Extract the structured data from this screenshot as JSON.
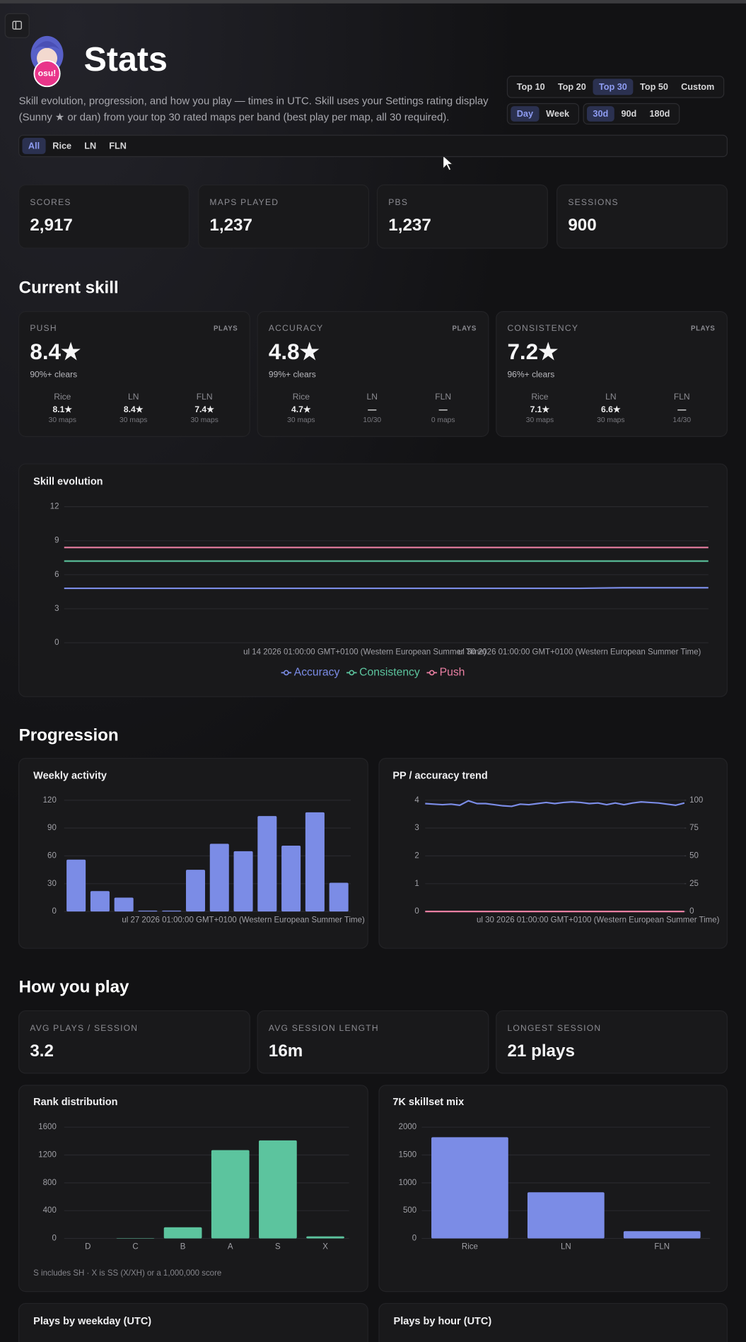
{
  "header": {
    "title": "Stats",
    "badge": "osu!",
    "description": "Skill evolution, progression, and how you play — times in UTC. Skill uses your Settings rating display (Sunny ★ or dan) from your top 30 rated maps per band (best play per map, all 30 required)."
  },
  "controls": {
    "top": {
      "options": [
        "Top 10",
        "Top 20",
        "Top 30",
        "Top 50",
        "Custom"
      ],
      "selected": 2
    },
    "period": {
      "options": [
        "Day",
        "Week"
      ],
      "selected": 0
    },
    "range": {
      "options": [
        "30d",
        "90d",
        "180d"
      ],
      "selected": 0
    },
    "filter": {
      "options": [
        "All",
        "Rice",
        "LN",
        "FLN"
      ],
      "selected": 0
    }
  },
  "summary": [
    {
      "label": "SCORES",
      "value": "2,917"
    },
    {
      "label": "MAPS PLAYED",
      "value": "1,237"
    },
    {
      "label": "PBS",
      "value": "1,237"
    },
    {
      "label": "SESSIONS",
      "value": "900"
    }
  ],
  "sections": {
    "skill": "Current skill",
    "progression": "Progression",
    "play": "How you play"
  },
  "skill_cards": [
    {
      "label": "PUSH",
      "tag": "PLAYS",
      "value": "8.4★",
      "sub": "90%+ clears",
      "bands": [
        {
          "name": "Rice",
          "value": "8.1★",
          "count": "30 maps"
        },
        {
          "name": "LN",
          "value": "8.4★",
          "count": "30 maps"
        },
        {
          "name": "FLN",
          "value": "7.4★",
          "count": "30 maps"
        }
      ]
    },
    {
      "label": "ACCURACY",
      "tag": "PLAYS",
      "value": "4.8★",
      "sub": "99%+ clears",
      "bands": [
        {
          "name": "Rice",
          "value": "4.7★",
          "count": "30 maps"
        },
        {
          "name": "LN",
          "value": "—",
          "count": "10/30"
        },
        {
          "name": "FLN",
          "value": "—",
          "count": "0 maps"
        }
      ]
    },
    {
      "label": "CONSISTENCY",
      "tag": "PLAYS",
      "value": "7.2★",
      "sub": "96%+ clears",
      "bands": [
        {
          "name": "Rice",
          "value": "7.1★",
          "count": "30 maps"
        },
        {
          "name": "LN",
          "value": "6.6★",
          "count": "30 maps"
        },
        {
          "name": "FLN",
          "value": "—",
          "count": "14/30"
        }
      ]
    }
  ],
  "play_stats": [
    {
      "label": "AVG PLAYS / SESSION",
      "value": "3.2"
    },
    {
      "label": "AVG SESSION LENGTH",
      "value": "16m"
    },
    {
      "label": "LONGEST SESSION",
      "value": "21 plays"
    }
  ],
  "chart_data": [
    {
      "type": "line",
      "title": "Skill evolution",
      "categories": [
        null,
        null,
        null,
        null,
        null,
        null,
        null,
        "ul 14 2026 01:00:00 GMT+0100 (Western European Summer Time)",
        null,
        null,
        null,
        null,
        "ul 30 2026 01:00:00 GMT+0100 (Western European Summer Time)",
        null,
        null,
        null
      ],
      "series": [
        {
          "name": "Accuracy",
          "color": "#7b8ce6",
          "values": [
            4.8,
            4.8,
            4.8,
            4.8,
            4.8,
            4.8,
            4.8,
            4.8,
            4.8,
            4.8,
            4.8,
            4.8,
            4.8,
            4.85,
            4.85,
            4.85
          ]
        },
        {
          "name": "Consistency",
          "color": "#5cc49e",
          "values": [
            7.2,
            7.2,
            7.2,
            7.2,
            7.2,
            7.2,
            7.2,
            7.2,
            7.2,
            7.2,
            7.2,
            7.2,
            7.2,
            7.2,
            7.2,
            7.2
          ]
        },
        {
          "name": "Push",
          "color": "#e97fa2",
          "values": [
            8.4,
            8.4,
            8.4,
            8.4,
            8.4,
            8.4,
            8.4,
            8.4,
            8.4,
            8.4,
            8.4,
            8.4,
            8.4,
            8.4,
            8.4,
            8.4
          ]
        }
      ],
      "ylim": [
        0,
        12
      ],
      "yticks": [
        0,
        3,
        6,
        9,
        12
      ],
      "grid": true,
      "legend": "bottom"
    },
    {
      "type": "bar",
      "title": "Weekly activity",
      "categories": [
        null,
        null,
        null,
        null,
        null,
        null,
        null,
        "ul 27 2026 01:00:00 GMT+0100 (Western European Summer Time)",
        null,
        null,
        null,
        null
      ],
      "values": [
        56,
        22,
        15,
        1,
        1,
        45,
        73,
        65,
        103,
        71,
        107,
        31
      ],
      "color": "#7b8ce6",
      "ylim": [
        0,
        120
      ],
      "yticks": [
        0,
        30,
        60,
        90,
        120
      ],
      "grid": true
    },
    {
      "type": "line",
      "title": "PP / accuracy trend",
      "categories": [
        null,
        null,
        null,
        null,
        null,
        null,
        null,
        null,
        null,
        null,
        null,
        null,
        null,
        null,
        null,
        null,
        null,
        null,
        null,
        null,
        "ul 30 2026 01:00:00 GMT+0100 (Western European Summer Time)",
        null,
        null,
        null,
        null,
        null,
        null,
        null,
        null,
        null,
        null
      ],
      "series": [
        {
          "color": "#7b8ce6",
          "axis": "y2",
          "values": [
            97,
            96.5,
            96,
            96.5,
            95.5,
            99.5,
            97,
            97,
            96,
            95,
            94.5,
            96.5,
            96,
            97,
            98,
            97,
            98,
            98.5,
            98,
            97,
            97.5,
            96,
            97.5,
            96,
            97.5,
            98.5,
            98,
            97.5,
            96.5,
            95.5,
            97.5
          ]
        },
        {
          "color": "#e97fa2",
          "values": [
            0,
            0,
            0,
            0,
            0,
            0,
            0,
            0,
            0,
            0,
            0,
            0,
            0,
            0,
            0,
            0,
            0,
            0,
            0,
            0,
            0,
            0,
            0,
            0,
            0,
            0,
            0,
            0,
            0,
            0,
            0
          ]
        }
      ],
      "ylim": [
        0,
        4
      ],
      "yticks": [
        0,
        1,
        2,
        3,
        4
      ],
      "y2lim": [
        0,
        100
      ],
      "y2ticks": [
        0,
        25,
        50,
        75,
        100
      ],
      "grid": true
    },
    {
      "type": "bar",
      "title": "Rank distribution",
      "categories": [
        "D",
        "C",
        "B",
        "A",
        "S",
        "X"
      ],
      "values": [
        0,
        5,
        160,
        1270,
        1410,
        30
      ],
      "color": "#5cc49e",
      "ylim": [
        0,
        1600
      ],
      "yticks": [
        0,
        400,
        800,
        1200,
        1600
      ],
      "grid": true,
      "footnote": "S includes SH · X is SS (X/XH) or a 1,000,000 score"
    },
    {
      "type": "bar",
      "title": "7K skillset mix",
      "categories": [
        "Rice",
        "LN",
        "FLN"
      ],
      "values": [
        1820,
        830,
        130
      ],
      "color": "#7b8ce6",
      "ylim": [
        0,
        2000
      ],
      "yticks": [
        0,
        500,
        1000,
        1500,
        2000
      ],
      "grid": true
    }
  ],
  "more_cards": [
    {
      "title": "Plays by weekday (UTC)"
    },
    {
      "title": "Plays by hour (UTC)"
    }
  ]
}
